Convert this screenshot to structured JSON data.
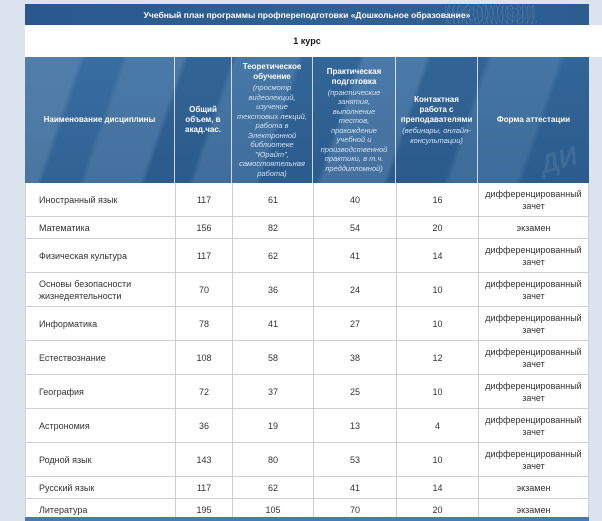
{
  "title": "Учебный план программы профпереподготовки «Дошкольное образование»",
  "course_label": "1 курс",
  "watermark": "ДИ",
  "colors": {
    "banner_blue": "#2c5d90",
    "header_blue": "#2f6396",
    "page_background": "#dbe3ef",
    "bottom_bar_blue": "#4a7ab6",
    "cell_border_gray": "#cfcfcf",
    "body_text": "#333333",
    "header_text": "#ffffff"
  },
  "table": {
    "fields": [
      "name",
      "total",
      "theory",
      "practice",
      "contact",
      "attestation"
    ],
    "columns": [
      {
        "main": "Наименование дисциплины",
        "sub": ""
      },
      {
        "main": "Общий объем, в акад.час.",
        "sub": ""
      },
      {
        "main": "Теоретическое обучение",
        "sub": "(просмотр видеолекций, изучение текстовых лекций, работа в Электронной библиотеке \"Юрайт\", самостоятельная работа)"
      },
      {
        "main": "Практическая подготовка",
        "sub": "(практические занятия, выполнение тестов, прохождение учебной и производственной практики, в т.ч. преддипломной)"
      },
      {
        "main": "Контактная работа с преподавателями",
        "sub": "(вебинары, онлайн-консультации)"
      },
      {
        "main": "Форма аттестации",
        "sub": ""
      }
    ],
    "rows": [
      {
        "name": "Иностранный язык",
        "total": "117",
        "theory": "61",
        "practice": "40",
        "contact": "16",
        "attestation": "дифференцированный зачет"
      },
      {
        "name": "Математика",
        "total": "156",
        "theory": "82",
        "practice": "54",
        "contact": "20",
        "attestation": "экзамен"
      },
      {
        "name": "Физическая культура",
        "total": "117",
        "theory": "62",
        "practice": "41",
        "contact": "14",
        "attestation": "дифференцированный зачет"
      },
      {
        "name": "Основы безопасности жизнедеятельности",
        "total": "70",
        "theory": "36",
        "practice": "24",
        "contact": "10",
        "attestation": "дифференцированный зачет"
      },
      {
        "name": "Информатика",
        "total": "78",
        "theory": "41",
        "practice": "27",
        "contact": "10",
        "attestation": "дифференцированный зачет"
      },
      {
        "name": "Естествознание",
        "total": "108",
        "theory": "58",
        "practice": "38",
        "contact": "12",
        "attestation": "дифференцированный зачет"
      },
      {
        "name": "География",
        "total": "72",
        "theory": "37",
        "practice": "25",
        "contact": "10",
        "attestation": "дифференцированный зачет"
      },
      {
        "name": "Астрономия",
        "total": "36",
        "theory": "19",
        "practice": "13",
        "contact": "4",
        "attestation": "дифференцированный зачет"
      },
      {
        "name": "Родной язык",
        "total": "143",
        "theory": "80",
        "practice": "53",
        "contact": "10",
        "attestation": "дифференцированный зачет"
      },
      {
        "name": "Русский язык",
        "total": "117",
        "theory": "62",
        "practice": "41",
        "contact": "14",
        "attestation": "экзамен"
      },
      {
        "name": "Литература",
        "total": "195",
        "theory": "105",
        "practice": "70",
        "contact": "20",
        "attestation": "экзамен"
      }
    ]
  }
}
